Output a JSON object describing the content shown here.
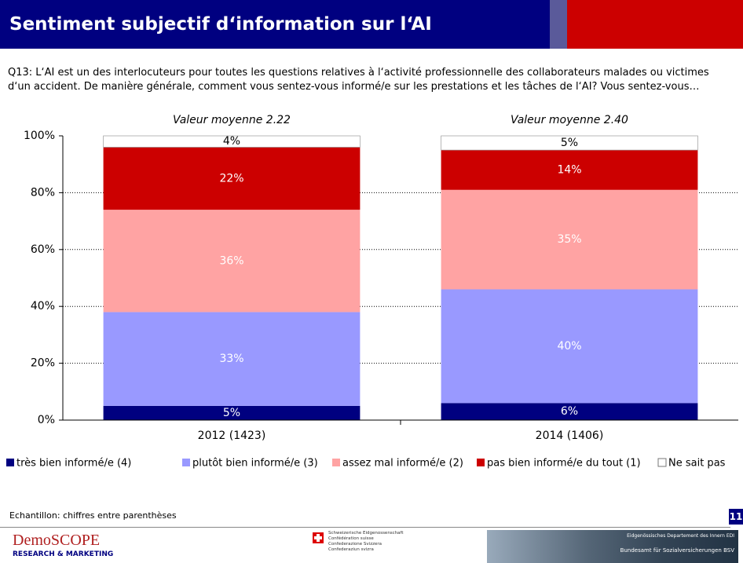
{
  "chart_data": {
    "type": "stacked_bar",
    "title": "Sentiment subjectif d‘information sur l‘AI",
    "subtitle": "Q13: L‘AI est un des interlocuteurs pour toutes les questions relatives à l‘activité professionnelle des collaborateurs malades ou victimes d‘un accident. De manière générale, comment vous sentez-vous informé/e sur les prestations et les tâches de l‘AI? Vous sentez-vous…",
    "annotations": [
      "Valeur moyenne 2.22",
      "Valeur moyenne 2.40"
    ],
    "categories": [
      "2012 (1423)",
      "2014 (1406)"
    ],
    "series": [
      {
        "name": "très bien informé/e (4)",
        "color": "#000080",
        "values": [
          5,
          6
        ],
        "value_labels": [
          "5%",
          "6%"
        ]
      },
      {
        "name": "plutôt bien informé/e (3)",
        "color": "#9999ff",
        "values": [
          33,
          40
        ],
        "value_labels": [
          "33%",
          "40%"
        ]
      },
      {
        "name": "assez mal informé/e (2)",
        "color": "#ffa3a3",
        "values": [
          36,
          35
        ],
        "value_labels": [
          "36%",
          "35%"
        ]
      },
      {
        "name": "pas bien informé/e du tout (1)",
        "color": "#cc0000",
        "values": [
          22,
          14
        ],
        "value_labels": [
          "22%",
          "14%"
        ]
      },
      {
        "name": "Ne sait pas",
        "color": "#ffffff",
        "values": [
          4,
          5
        ],
        "value_labels": [
          "4%",
          "5%"
        ]
      }
    ],
    "ylim": [
      0,
      100
    ],
    "yticks": [
      {
        "value": 0,
        "label": "0%"
      },
      {
        "value": 20,
        "label": "20%"
      },
      {
        "value": 40,
        "label": "40%"
      },
      {
        "value": 60,
        "label": "60%"
      },
      {
        "value": 80,
        "label": "80%"
      },
      {
        "value": 100,
        "label": "100%"
      }
    ],
    "grid": true
  },
  "footer": {
    "note": "Echantillon: chiffres entre parenthèses",
    "page": "11",
    "logo": "DemoSCOPE",
    "logo_sub": "RESEARCH & MARKETING",
    "confederation": [
      "Schweizerische Eidgenossenschaft",
      "Confédération suisse",
      "Confederazione Svizzera",
      "Confederaziun svizra"
    ],
    "department": "Eidgenössisches Departement des Innern EDI",
    "office": "Bundesamt für Sozialversicherungen BSV"
  }
}
